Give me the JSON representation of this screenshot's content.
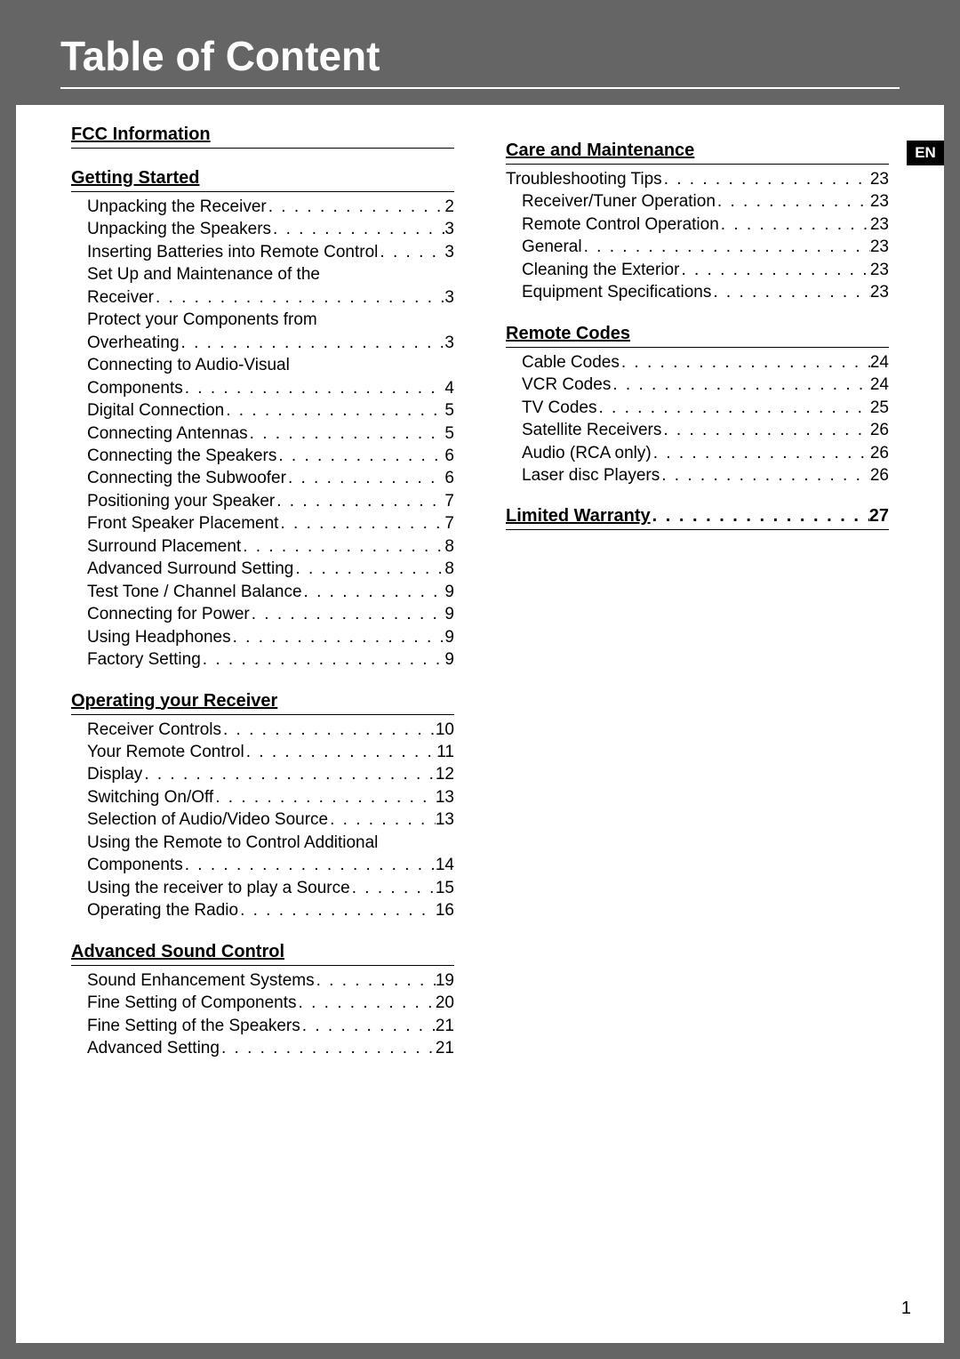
{
  "header": {
    "title": "Table of Content",
    "lang_badge": "EN"
  },
  "page_number": "1",
  "leader_dots": " . . . . . . . . . . . . . . . . . . . . . . . . . . . . . . . . . . . . . . . .",
  "style": {
    "border_color": "#656566",
    "header_bg": "#656566",
    "header_text_color": "#ffffff",
    "text_color": "#010101",
    "badge_bg": "#010101",
    "title_fontsize": 46,
    "heading_fontsize": 20,
    "entry_fontsize": 19,
    "background": "#ffffff"
  },
  "sections": {
    "fcc": {
      "title": "FCC Information",
      "entries": []
    },
    "getting_started": {
      "title": "Getting Started",
      "entries": [
        {
          "label": "Unpacking the Receiver",
          "page": "2"
        },
        {
          "label": "Unpacking the Speakers",
          "page": "3"
        },
        {
          "label": "Inserting Batteries into Remote Control",
          "page": "3"
        },
        {
          "label_pre": "Set Up and Maintenance of the",
          "label": "Receiver",
          "page": "3"
        },
        {
          "label_pre": "Protect your Components from",
          "label": "Overheating",
          "page": "3"
        },
        {
          "label_pre": "Connecting to Audio-Visual",
          "label": "Components",
          "page": "4"
        },
        {
          "label": "Digital Connection",
          "page": "5"
        },
        {
          "label": "Connecting Antennas",
          "page": "5"
        },
        {
          "label": "Connecting the Speakers",
          "page": "6"
        },
        {
          "label": "Connecting the Subwoofer",
          "page": "6"
        },
        {
          "label": "Positioning your Speaker",
          "page": "7"
        },
        {
          "label": "Front Speaker Placement",
          "page": "7"
        },
        {
          "label": "Surround Placement",
          "page": "8"
        },
        {
          "label": "Advanced Surround Setting",
          "page": "8"
        },
        {
          "label": "Test Tone / Channel Balance",
          "page": "9"
        },
        {
          "label": "Connecting for Power",
          "page": "9"
        },
        {
          "label": "Using Headphones",
          "page": "9"
        },
        {
          "label": "Factory Setting",
          "page": "9"
        }
      ]
    },
    "operating": {
      "title": "Operating your Receiver",
      "entries": [
        {
          "label": "Receiver Controls",
          "page": "10"
        },
        {
          "label": "Your Remote Control",
          "page": "11"
        },
        {
          "label": "Display",
          "page": "12"
        },
        {
          "label": "Switching On/Off",
          "page": "13"
        },
        {
          "label": "Selection of Audio/Video Source",
          "page": "13"
        },
        {
          "label_pre": "Using the Remote to Control Additional",
          "label": "Components",
          "page": "14"
        },
        {
          "label": "Using the receiver to play a Source",
          "page": "15"
        },
        {
          "label": "Operating the Radio",
          "page": "16"
        }
      ]
    },
    "advanced_sound": {
      "title": "Advanced Sound Control",
      "entries": [
        {
          "label": "Sound Enhancement Systems",
          "page": "19"
        },
        {
          "label": "Fine Setting of Components",
          "page": "20"
        },
        {
          "label": "Fine Setting of the Speakers",
          "page": "21"
        },
        {
          "label": "Advanced Setting",
          "page": "21"
        }
      ]
    },
    "care": {
      "title": "Care and Maintenance",
      "entries": [
        {
          "label": "Troubleshooting Tips",
          "page": "23",
          "indent": 0
        },
        {
          "label": "Receiver/Tuner Operation",
          "page": "23",
          "indent": 1
        },
        {
          "label": "Remote Control Operation",
          "page": "23",
          "indent": 1
        },
        {
          "label": "General",
          "page": "23",
          "indent": 1
        },
        {
          "label": "Cleaning the Exterior",
          "page": "23",
          "indent": 1
        },
        {
          "label": "Equipment Specifications",
          "page": "23",
          "indent": 1
        }
      ]
    },
    "remote_codes": {
      "title": "Remote Codes",
      "entries": [
        {
          "label": "Cable Codes",
          "page": "24"
        },
        {
          "label": "VCR Codes",
          "page": "24"
        },
        {
          "label": "TV Codes",
          "page": "25"
        },
        {
          "label": "Satellite Receivers",
          "page": "26"
        },
        {
          "label": "Audio (RCA only)",
          "page": "26"
        },
        {
          "label": "Laser disc Players",
          "page": "26"
        }
      ]
    },
    "warranty": {
      "title": "Limited Warranty",
      "page": "27"
    }
  }
}
